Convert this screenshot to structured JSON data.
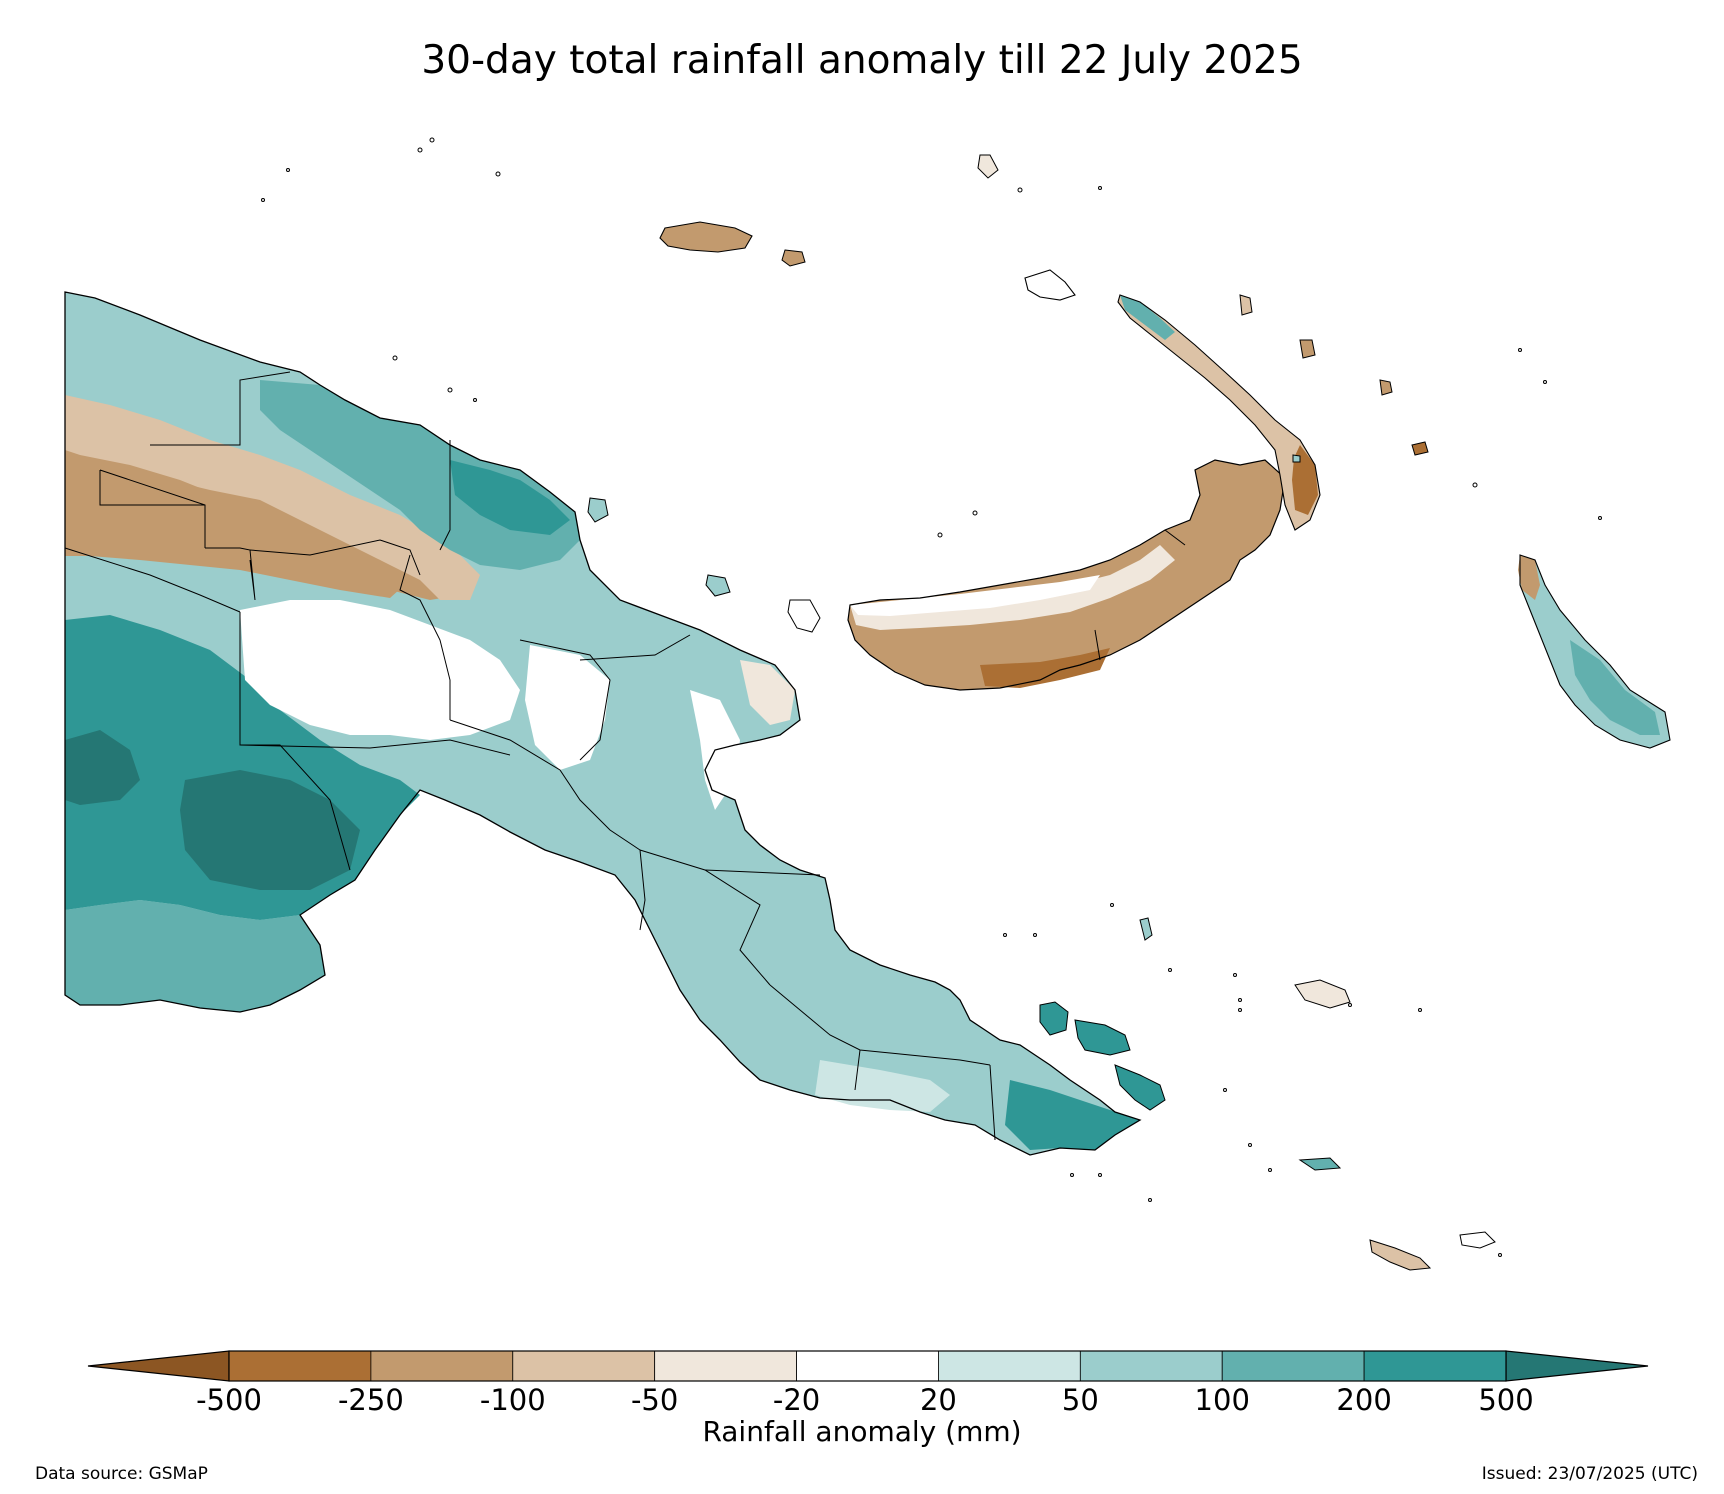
{
  "title": "30-day total rainfall anomaly till 22 July 2025",
  "map": {
    "region": "Papua New Guinea",
    "variable": "30-day total rainfall anomaly",
    "provincial_boundaries": true
  },
  "colorbar": {
    "label": "Rainfall anomaly (mm)",
    "ticks": [
      "-500",
      "-250",
      "-100",
      "-50",
      "-20",
      "20",
      "50",
      "100",
      "200",
      "500"
    ],
    "colors": [
      "#ab6f34",
      "#c29a6e",
      "#dcc2a6",
      "#f0e7dc",
      "#ffffff",
      "#cde6e4",
      "#9bcdcc",
      "#62b0ae",
      "#2f9795"
    ],
    "extend_low_color": "#8c5623",
    "extend_high_color": "#257774"
  },
  "footer": {
    "source": "Data source: GSMaP",
    "issued": "Issued: 23/07/2025 (UTC)"
  }
}
